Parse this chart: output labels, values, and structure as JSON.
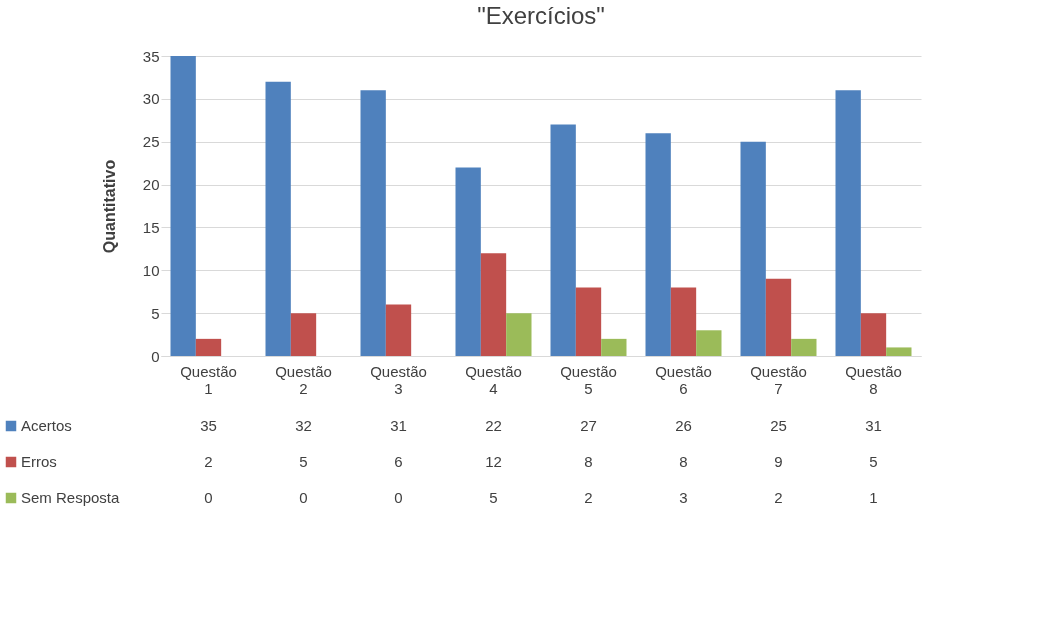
{
  "chart_data": {
    "type": "bar",
    "title": "\"Exercícios\"",
    "ylabel": "Quantitativo",
    "categories": [
      "Questão 1",
      "Questão 2",
      "Questão 3",
      "Questão 4",
      "Questão 5",
      "Questão 6",
      "Questão 7",
      "Questão 8"
    ],
    "series": [
      {
        "name": "Acertos",
        "color": "#4f81bd",
        "values": [
          35,
          32,
          31,
          22,
          27,
          26,
          25,
          31
        ]
      },
      {
        "name": "Erros",
        "color": "#c0504d",
        "values": [
          2,
          5,
          6,
          12,
          8,
          8,
          9,
          5
        ]
      },
      {
        "name": "Sem Resposta",
        "color": "#9bbb59",
        "values": [
          0,
          0,
          0,
          5,
          2,
          3,
          2,
          1
        ]
      }
    ],
    "ylim": [
      0,
      35
    ],
    "yticks": [
      0,
      5,
      10,
      15,
      20,
      25,
      30,
      35
    ],
    "grid": "y",
    "legend": "bottom",
    "data_labels": true
  }
}
